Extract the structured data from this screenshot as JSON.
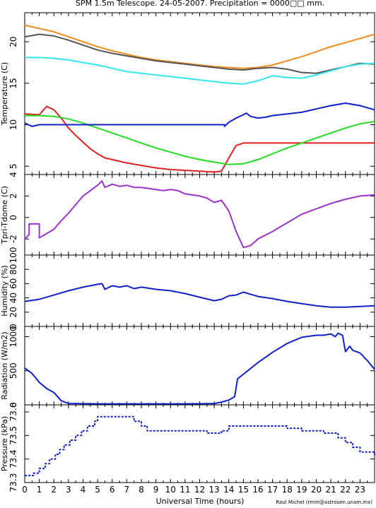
{
  "page": {
    "title": "SPM 1.5m Telescope. 24-05-2007. Precipitation = 0000□□ mm.",
    "xlabel": "Universal Time (hours)",
    "credit": "Raul Michel (rmm@astrosen.unam.mx)"
  },
  "chart_data": [
    {
      "type": "line",
      "ylabel": "Temperature (C)",
      "xlim": [
        0,
        24
      ],
      "ylim": [
        4,
        23.5
      ],
      "yticks": [
        5,
        10,
        15,
        20
      ],
      "xticks": [
        0,
        1,
        2,
        3,
        4,
        5,
        6,
        7,
        8,
        9,
        10,
        11,
        12,
        13,
        14,
        15,
        16,
        17,
        18,
        19,
        20,
        21,
        22,
        23
      ],
      "series": [
        {
          "color": "#f08a1c",
          "style": "line",
          "x": [
            0,
            1,
            2,
            3,
            4,
            5,
            6,
            7,
            8,
            9,
            10,
            11,
            12,
            13,
            14,
            15,
            16,
            17,
            18,
            19,
            20,
            21,
            22,
            23,
            24
          ],
          "y": [
            22.0,
            21.6,
            21.2,
            20.6,
            20.0,
            19.4,
            18.9,
            18.5,
            18.1,
            17.8,
            17.6,
            17.4,
            17.2,
            17.0,
            16.9,
            16.8,
            16.9,
            17.2,
            17.7,
            18.2,
            18.8,
            19.4,
            19.9,
            20.4,
            20.9
          ]
        },
        {
          "color": "#555555",
          "style": "line",
          "x": [
            0,
            1,
            2,
            3,
            4,
            5,
            6,
            7,
            8,
            9,
            10,
            11,
            12,
            13,
            14,
            15,
            16,
            17,
            18,
            19,
            20,
            21,
            22,
            23,
            24
          ],
          "y": [
            20.6,
            20.9,
            20.7,
            20.2,
            19.6,
            19.0,
            18.6,
            18.3,
            18.0,
            17.7,
            17.5,
            17.3,
            17.1,
            16.9,
            16.7,
            16.6,
            16.8,
            16.9,
            16.7,
            16.3,
            16.2,
            16.6,
            17.0,
            17.4,
            17.3
          ]
        },
        {
          "color": "#33e6f0",
          "style": "line",
          "x": [
            0,
            1,
            2,
            3,
            4,
            5,
            6,
            7,
            8,
            9,
            10,
            11,
            12,
            13,
            14,
            15,
            16,
            17,
            18,
            19,
            20,
            21,
            22,
            23,
            24
          ],
          "y": [
            18.1,
            18.1,
            18.0,
            17.8,
            17.5,
            17.2,
            16.8,
            16.4,
            16.2,
            16.0,
            15.8,
            15.6,
            15.4,
            15.2,
            15.0,
            14.9,
            15.3,
            15.9,
            15.7,
            15.6,
            16.0,
            16.5,
            17.0,
            17.3,
            17.4
          ]
        },
        {
          "color": "#dd2222",
          "style": "line",
          "x": [
            0,
            1,
            1.5,
            2,
            2.5,
            3,
            3.5,
            4,
            4.5,
            5,
            5.5,
            6,
            7,
            8,
            9,
            10,
            11,
            12,
            13,
            13.5,
            14,
            14.5,
            15,
            16,
            17,
            18,
            19,
            20,
            21,
            22,
            23,
            24
          ],
          "y": [
            11.3,
            11.2,
            12.2,
            11.8,
            10.8,
            9.6,
            8.7,
            7.9,
            7.1,
            6.5,
            6.0,
            5.8,
            5.4,
            5.1,
            4.8,
            4.6,
            4.5,
            4.4,
            4.3,
            4.4,
            6.0,
            7.5,
            7.8,
            7.8,
            7.8,
            7.8,
            7.8,
            7.8,
            7.8,
            7.8,
            7.8,
            7.8
          ]
        },
        {
          "color": "#22dd22",
          "style": "line",
          "x": [
            0,
            1,
            2,
            3,
            4,
            5,
            6,
            7,
            8,
            9,
            10,
            11,
            12,
            13,
            14,
            15,
            16,
            17,
            18,
            19,
            20,
            21,
            22,
            23,
            24
          ],
          "y": [
            11.1,
            11.1,
            11.0,
            10.7,
            10.2,
            9.6,
            9.0,
            8.4,
            7.8,
            7.2,
            6.7,
            6.2,
            5.8,
            5.5,
            5.2,
            5.3,
            5.8,
            6.5,
            7.2,
            7.8,
            8.4,
            9.0,
            9.6,
            10.1,
            10.4
          ]
        },
        {
          "color": "#1020c8",
          "style": "line",
          "x": [
            0,
            0.5,
            1,
            2,
            4,
            6,
            8,
            10,
            12,
            13.7,
            13.7,
            14,
            14.5,
            15,
            15.2,
            15.5,
            16,
            16.5,
            17,
            18,
            19,
            20,
            21,
            22,
            23,
            24
          ],
          "y": [
            10.2,
            9.8,
            10.0,
            10.0,
            10.0,
            10.0,
            10.0,
            10.0,
            10.0,
            10.0,
            9.8,
            10.3,
            10.8,
            11.2,
            11.4,
            11.0,
            10.8,
            10.9,
            11.1,
            11.3,
            11.5,
            11.9,
            12.3,
            12.6,
            12.3,
            11.8
          ]
        }
      ]
    },
    {
      "type": "scatter",
      "ylabel": "Tpri-Tdome (C)",
      "xlim": [
        0,
        24
      ],
      "ylim": [
        -3.5,
        4
      ],
      "yticks": [
        -2,
        0,
        2,
        4
      ],
      "series": [
        {
          "color": "#9933cc",
          "style": "line",
          "x": [
            0,
            0.3,
            0.3,
            1.0,
            1.0,
            1.5,
            2,
            2.5,
            3,
            3.5,
            4,
            4.5,
            5,
            5.3,
            5.5,
            6,
            6.5,
            7,
            7.5,
            8,
            8.5,
            9,
            9.5,
            10,
            10.5,
            11,
            11.5,
            12,
            12.5,
            13,
            13.5,
            14,
            14.5,
            15,
            15.5,
            16,
            17,
            18,
            19,
            20,
            21,
            22,
            23,
            24
          ],
          "y": [
            -2.0,
            -1.6,
            -0.6,
            -0.6,
            -1.9,
            -1.5,
            -1.1,
            -0.3,
            0.4,
            1.2,
            2.0,
            2.5,
            3.0,
            3.4,
            2.8,
            3.1,
            2.9,
            3.0,
            2.8,
            2.8,
            2.7,
            2.6,
            2.5,
            2.6,
            2.5,
            2.2,
            2.1,
            2.0,
            1.8,
            1.4,
            1.6,
            0.6,
            -1.3,
            -2.8,
            -2.6,
            -2.0,
            -1.3,
            -0.5,
            0.3,
            0.8,
            1.3,
            1.7,
            2.0,
            2.1
          ]
        }
      ]
    },
    {
      "type": "line",
      "ylabel": "Humidity (%)",
      "xlim": [
        0,
        24
      ],
      "ylim": [
        0,
        100
      ],
      "yticks": [
        0,
        20,
        40,
        60,
        80,
        100
      ],
      "series": [
        {
          "color": "#1020c8",
          "style": "line",
          "x": [
            0,
            1,
            2,
            3,
            4,
            5,
            5.3,
            5.5,
            6,
            6.5,
            7,
            7.5,
            8,
            9,
            10,
            11,
            12,
            13,
            13.5,
            14,
            14.5,
            15,
            15.5,
            16,
            17,
            18,
            19,
            20,
            21,
            22,
            23,
            24
          ],
          "y": [
            35,
            38,
            44,
            50,
            55,
            59,
            60,
            52,
            57,
            55,
            57,
            53,
            55,
            52,
            50,
            46,
            41,
            36,
            38,
            43,
            44,
            48,
            45,
            42,
            39,
            35,
            32,
            29,
            27,
            27,
            28,
            29
          ]
        }
      ]
    },
    {
      "type": "line",
      "ylabel": "Radiation (W/m2)",
      "xlim": [
        0,
        24
      ],
      "ylim": [
        0,
        1150
      ],
      "yticks": [
        0,
        500,
        1000
      ],
      "series": [
        {
          "color": "#1020c8",
          "style": "line",
          "x": [
            0,
            0.5,
            1,
            1.5,
            2,
            2.5,
            3,
            5,
            7,
            9,
            11,
            13,
            13.5,
            14,
            14.4,
            14.6,
            15,
            16,
            17,
            18,
            19,
            20,
            20.5,
            21,
            21.3,
            21.5,
            21.8,
            22,
            22.3,
            22.5,
            23,
            23.5,
            24
          ],
          "y": [
            540,
            460,
            330,
            240,
            180,
            60,
            20,
            15,
            15,
            15,
            15,
            18,
            40,
            70,
            120,
            380,
            450,
            620,
            770,
            900,
            990,
            1020,
            1020,
            1040,
            1000,
            1050,
            1020,
            780,
            860,
            800,
            760,
            650,
            520
          ]
        }
      ]
    },
    {
      "type": "scatter",
      "ylabel": "Pressure (kPa)",
      "xlim": [
        0,
        24
      ],
      "ylim": [
        73.3,
        73.63
      ],
      "yticks": [
        73.3,
        73.4,
        73.5,
        73.6
      ],
      "series": [
        {
          "color": "#1020c8",
          "style": "steps",
          "x": [
            0,
            0.6,
            1.0,
            1.4,
            1.7,
            2.1,
            2.4,
            2.7,
            3.1,
            3.5,
            3.9,
            4.3,
            4.8,
            5.0,
            7.5,
            8.0,
            8.4,
            11.5,
            12.5,
            13.5,
            14.0,
            18.0,
            19.0,
            20.5,
            21.5,
            22.0,
            22.5,
            23.0,
            24
          ],
          "y": [
            73.33,
            73.34,
            73.36,
            73.38,
            73.4,
            73.42,
            73.44,
            73.46,
            73.48,
            73.5,
            73.52,
            73.54,
            73.56,
            73.58,
            73.56,
            73.54,
            73.52,
            73.52,
            73.51,
            73.52,
            73.54,
            73.53,
            73.52,
            73.51,
            73.49,
            73.47,
            73.45,
            73.43,
            73.41
          ]
        }
      ]
    }
  ]
}
